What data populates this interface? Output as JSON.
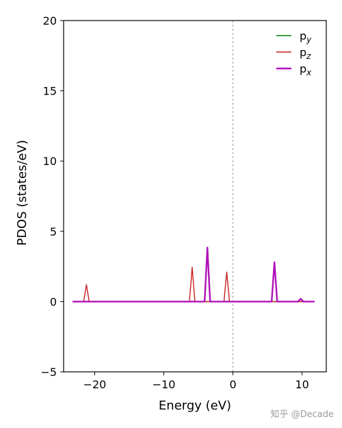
{
  "chart_data": {
    "type": "line",
    "title": "",
    "xlabel": "Energy (eV)",
    "ylabel": "PDOS (states/eV)",
    "xlim": [
      -24.5,
      13.5
    ],
    "ylim": [
      -5,
      20
    ],
    "xticks": [
      -20,
      -10,
      0,
      10
    ],
    "yticks": [
      -5,
      0,
      5,
      10,
      15,
      20
    ],
    "grid": false,
    "legend_position": "top-right",
    "fermi_level": 0,
    "series": [
      {
        "name": "p_y",
        "label_base": "p",
        "label_sub": "y",
        "color": "#008000",
        "linewidth": 1.4,
        "x": [
          -23.2,
          11.8
        ],
        "y": [
          0,
          0
        ]
      },
      {
        "name": "p_z",
        "label_base": "p",
        "label_sub": "z",
        "color": "#c81e1e",
        "linewidth": 1.4,
        "x": [
          -23.2,
          -21.6,
          -21.4,
          -21.2,
          -21.0,
          -20.8,
          -6.3,
          -6.1,
          -5.9,
          -5.7,
          -5.5,
          -1.3,
          -1.1,
          -0.9,
          -0.7,
          -0.5,
          11.8
        ],
        "y": [
          0,
          0,
          0.6,
          1.2,
          0.6,
          0,
          0,
          1.2,
          2.45,
          1.2,
          0,
          0,
          1.05,
          2.1,
          1.05,
          0,
          0
        ]
      },
      {
        "name": "p_x",
        "label_base": "p",
        "label_sub": "x",
        "color": "#b010b8",
        "linewidth": 2.4,
        "x": [
          -23.2,
          -4.1,
          -3.9,
          -3.7,
          -3.5,
          -3.3,
          5.6,
          5.8,
          6.0,
          6.2,
          6.4,
          9.4,
          9.6,
          9.8,
          10.0,
          10.2,
          11.8
        ],
        "y": [
          0,
          0,
          1.9,
          3.85,
          1.9,
          0,
          0,
          1.4,
          2.8,
          1.4,
          0,
          0,
          0.1,
          0.2,
          0.1,
          0,
          0
        ]
      }
    ]
  },
  "watermark": "知乎 @Decade"
}
